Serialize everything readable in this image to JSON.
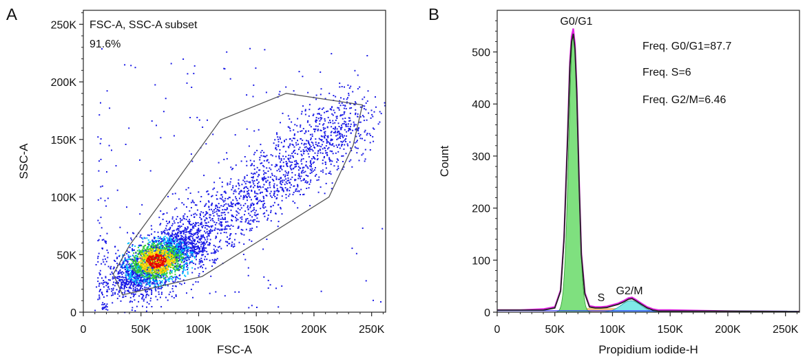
{
  "chart_data": [
    {
      "panel": "A",
      "type": "scatter",
      "xlabel": "FSC-A",
      "ylabel": "SSC-A",
      "xlim": [
        0,
        262144
      ],
      "ylim": [
        0,
        262144
      ],
      "xticks": [
        0,
        50000,
        100000,
        150000,
        200000,
        250000
      ],
      "xtick_labels": [
        "0",
        "50K",
        "100K",
        "150K",
        "200K",
        "250K"
      ],
      "yticks": [
        0,
        50000,
        100000,
        150000,
        200000,
        250000
      ],
      "ytick_labels": [
        "0",
        "50K",
        "100K",
        "150K",
        "200K",
        "250K"
      ],
      "gate_label": "FSC-A, SSC-A subset",
      "gate_percent": "91.6%",
      "gate_polygon": [
        [
          34000,
          15000
        ],
        [
          103000,
          31000
        ],
        [
          175000,
          76000
        ],
        [
          213000,
          100000
        ],
        [
          234000,
          145000
        ],
        [
          242000,
          180000
        ],
        [
          176000,
          190000
        ],
        [
          119000,
          167000
        ],
        [
          73000,
          103000
        ],
        [
          40000,
          58000
        ],
        [
          26000,
          33000
        ]
      ],
      "density_center": [
        63000,
        45000
      ],
      "colors": {
        "sparse": "#1a1ae6",
        "low": "#00bfff",
        "mid": "#33cc33",
        "high": "#ffd000",
        "peak": "#e60000",
        "gate": "#555555"
      }
    },
    {
      "panel": "B",
      "type": "area",
      "xlabel": "Propidium iodide-H",
      "ylabel": "Count",
      "xlim": [
        0,
        262144
      ],
      "ylim": [
        0,
        580
      ],
      "xticks": [
        0,
        50000,
        100000,
        150000,
        200000,
        250000
      ],
      "xtick_labels": [
        "0",
        "50K",
        "100K",
        "150K",
        "200K",
        "250K"
      ],
      "yticks": [
        0,
        100,
        200,
        300,
        400,
        500
      ],
      "ytick_labels": [
        "0",
        "100",
        "200",
        "300",
        "400",
        "500"
      ],
      "annotations": [
        "Freq. G0/G1=87.7",
        "Freq. S=6",
        "Freq. G2/M=6.46"
      ],
      "peak_labels": {
        "g0g1": "G0/G1",
        "s": "S",
        "g2m": "G2/M"
      },
      "histogram": {
        "x": [
          0,
          20000,
          40000,
          50000,
          55000,
          58000,
          61000,
          63000,
          64500,
          66000,
          67500,
          69000,
          71000,
          73000,
          76000,
          80000,
          85000,
          90000,
          95000,
          100000,
          105000,
          110000,
          114000,
          117000,
          120000,
          125000,
          130000,
          135000,
          140000,
          150000,
          200000,
          262000
        ],
        "y": [
          4,
          4,
          4,
          8,
          40,
          140,
          330,
          470,
          520,
          535,
          505,
          420,
          250,
          110,
          35,
          10,
          8,
          8,
          9,
          12,
          15,
          20,
          25,
          26,
          22,
          15,
          8,
          4,
          2,
          2,
          2,
          1
        ]
      },
      "g0g1_fit": {
        "mean": 66000,
        "sd": 3900,
        "peak": 540
      },
      "g2m_fit": {
        "mean": 116000,
        "sd": 8500,
        "peak": 22
      },
      "s_fit": {
        "from": 72000,
        "to": 112000,
        "level": 8
      },
      "colors": {
        "g0g1_fill": "#7fe07f",
        "g2m_fill": "#7fe8e8",
        "s_fill": "#f0c070",
        "outline": "#222222",
        "fit_line": "#e020e0",
        "baseline": "#3030ff"
      }
    }
  ]
}
